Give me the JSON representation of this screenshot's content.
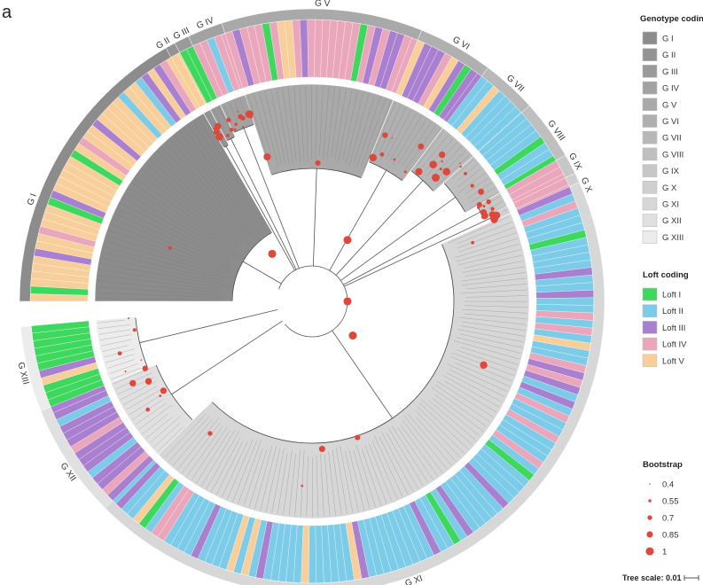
{
  "panel_letter": "a",
  "genotype_legend": {
    "title": "Genotype coding",
    "items": [
      {
        "label": "G I",
        "color": "#8c8c8c"
      },
      {
        "label": "G II",
        "color": "#939393"
      },
      {
        "label": "G III",
        "color": "#9a9a9a"
      },
      {
        "label": "G IV",
        "color": "#a2a2a2"
      },
      {
        "label": "G V",
        "color": "#a9a9a9"
      },
      {
        "label": "G VI",
        "color": "#b0b0b0"
      },
      {
        "label": "G VII",
        "color": "#b8b8b8"
      },
      {
        "label": "G VIII",
        "color": "#bfbfbf"
      },
      {
        "label": "G IX",
        "color": "#c7c7c7"
      },
      {
        "label": "G X",
        "color": "#cfcfcf"
      },
      {
        "label": "G XI",
        "color": "#d7d7d7"
      },
      {
        "label": "G XII",
        "color": "#e0e0e0"
      },
      {
        "label": "G XIII",
        "color": "#ececec"
      }
    ]
  },
  "loft_legend": {
    "title": "Loft coding",
    "items": [
      {
        "label": "Loft I",
        "color": "#3ed85e"
      },
      {
        "label": "Loft II",
        "color": "#7ccbe8"
      },
      {
        "label": "Loft III",
        "color": "#a97fd0"
      },
      {
        "label": "Loft IV",
        "color": "#eaa7bc"
      },
      {
        "label": "Loft V",
        "color": "#f8cf9a"
      }
    ]
  },
  "bootstrap_legend": {
    "title": "Bootstrap",
    "items": [
      {
        "label": "0.4",
        "value": 0.4
      },
      {
        "label": "0.55",
        "value": 0.55
      },
      {
        "label": "0.7",
        "value": 0.7
      },
      {
        "label": "0.85",
        "value": 0.85
      },
      {
        "label": "1",
        "value": 1
      }
    ],
    "dot_color": "#e0463a"
  },
  "tree_scale": {
    "label": "Tree scale:",
    "value": "0.01"
  },
  "genotype_labels": [
    "G I",
    "G II",
    "G III",
    "G IV",
    "G V",
    "G VI",
    "G VII",
    "G VIII",
    "G IX",
    "G X",
    "G XI",
    "G XII",
    "G XIII"
  ]
}
